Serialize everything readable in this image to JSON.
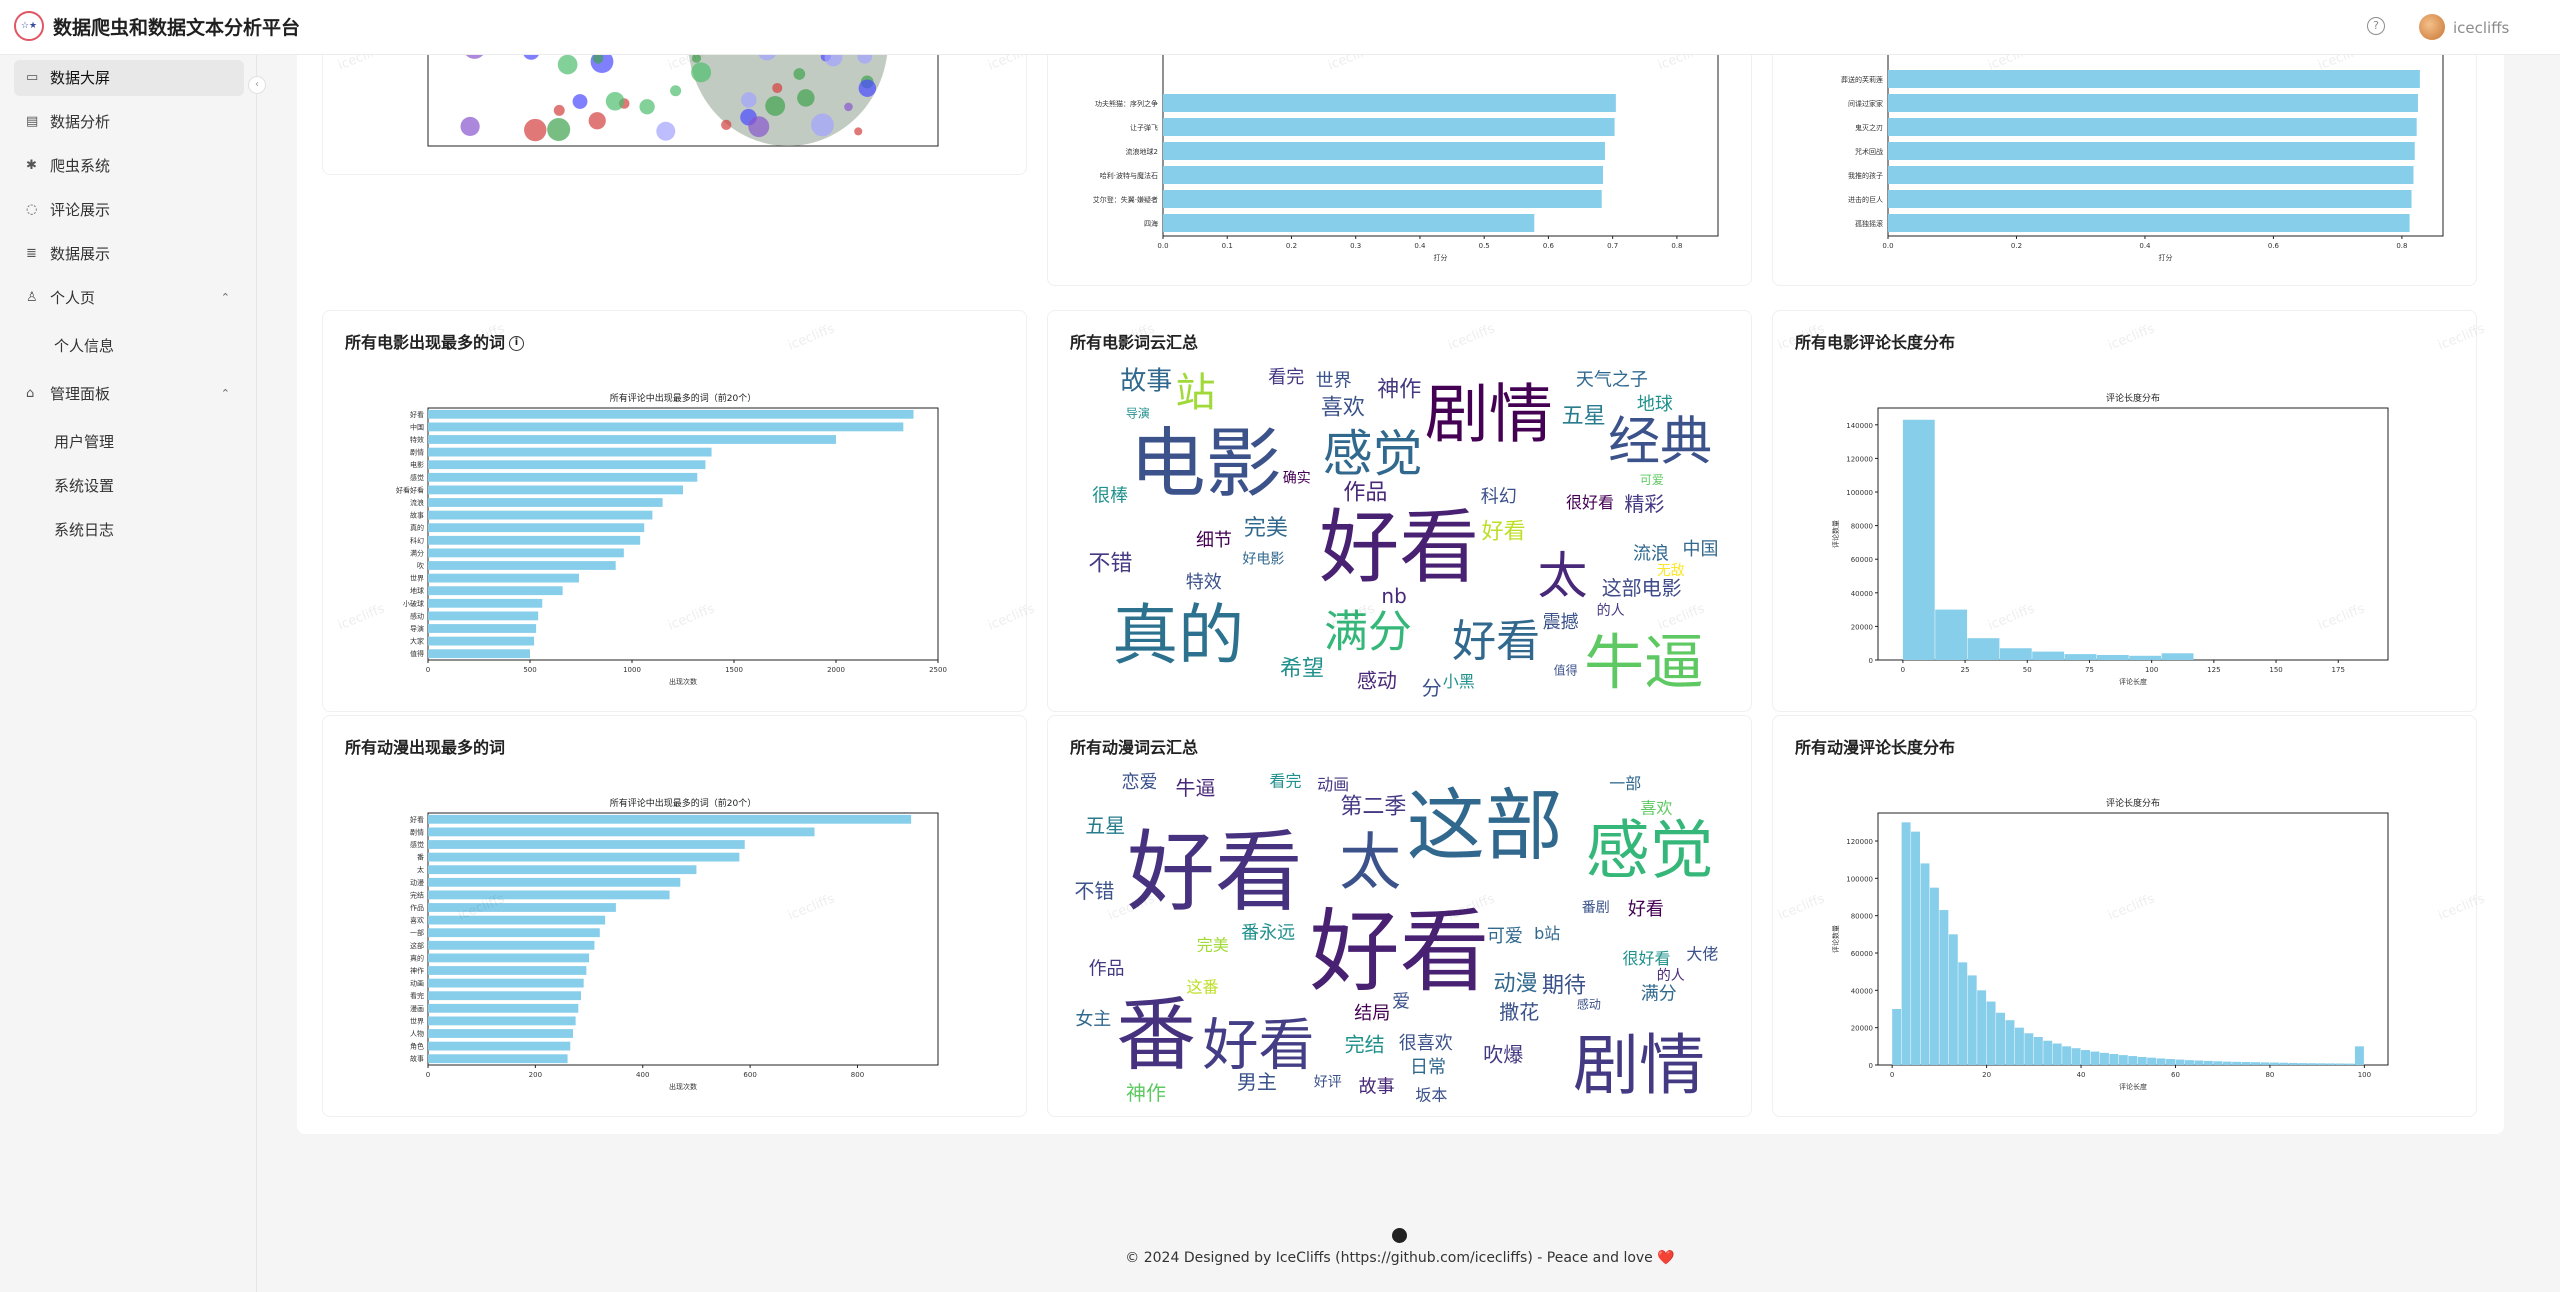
{
  "app": {
    "title": "数据爬虫和数据文本分析平台",
    "logo_text": "☆★",
    "username": "icecliffs",
    "help_icon": "question-circle-icon",
    "watermark": "icecliffs"
  },
  "sidebar": {
    "items": [
      {
        "label": "数据大屏",
        "icon": "dashboard-icon",
        "active": true
      },
      {
        "label": "数据分析",
        "icon": "chart-icon"
      },
      {
        "label": "爬虫系统",
        "icon": "bug-icon"
      },
      {
        "label": "评论展示",
        "icon": "comment-icon"
      },
      {
        "label": "数据展示",
        "icon": "table-icon"
      }
    ],
    "groups": [
      {
        "label": "个人页",
        "icon": "user-icon",
        "expanded": true,
        "children": [
          "个人信息"
        ]
      },
      {
        "label": "管理面板",
        "icon": "settings-icon",
        "expanded": true,
        "children": [
          "用户管理",
          "系统设置",
          "系统日志"
        ]
      }
    ]
  },
  "top_cards": {
    "middle_chart": {
      "xlabel": "打分",
      "xticks": [
        "0.0",
        "0.1",
        "0.2",
        "0.3",
        "0.4",
        "0.5",
        "0.6",
        "0.7",
        "0.8"
      ],
      "bars": [
        {
          "label": "功夫熊猫：序列之争",
          "value": 0.705
        },
        {
          "label": "让子弹飞",
          "value": 0.703
        },
        {
          "label": "流浪地球2",
          "value": 0.688
        },
        {
          "label": "哈利·波特与魔法石",
          "value": 0.685
        },
        {
          "label": "艾尔登：失翼·嫌疑者",
          "value": 0.683
        },
        {
          "label": "四海",
          "value": 0.578
        }
      ]
    },
    "right_chart": {
      "xlabel": "打分",
      "xticks": [
        "0.0",
        "0.2",
        "0.4",
        "0.6",
        "0.8"
      ],
      "bars": [
        {
          "label": "葬送的芙莉莲",
          "value": 0.828
        },
        {
          "label": "间谍过家家",
          "value": 0.825
        },
        {
          "label": "鬼灭之刃",
          "value": 0.823
        },
        {
          "label": "咒术回战",
          "value": 0.82
        },
        {
          "label": "我推的孩子",
          "value": 0.818
        },
        {
          "label": "进击的巨人",
          "value": 0.815
        },
        {
          "label": "孤独摇滚",
          "value": 0.812
        }
      ]
    }
  },
  "cards": {
    "movie_words": {
      "title": "所有电影出现最多的词",
      "info_icon": "info-circle-icon",
      "chart_data": {
        "type": "bar",
        "orientation": "horizontal",
        "title": "所有评论中出现最多的词（前20个）",
        "xlabel": "出现次数",
        "ylabel": "",
        "xlim": [
          0,
          2500
        ],
        "xticks": [
          0,
          500,
          1000,
          1500,
          2000,
          2500
        ],
        "categories": [
          "好看",
          "中国",
          "特效",
          "剧情",
          "电影",
          "感觉",
          "好看好看",
          "流浪",
          "故事",
          "真的",
          "科幻",
          "满分",
          "吹",
          "世界",
          "地球",
          "小破球",
          "感动",
          "导演",
          "大家",
          "值得"
        ],
        "values": [
          2380,
          2330,
          2000,
          1390,
          1360,
          1320,
          1250,
          1150,
          1100,
          1060,
          1040,
          960,
          920,
          740,
          660,
          560,
          540,
          530,
          520,
          500
        ]
      }
    },
    "movie_cloud": {
      "title": "所有电影词云汇总",
      "words": [
        {
          "t": "好看",
          "s": 80,
          "c": "#482173"
        },
        {
          "t": "电影",
          "s": 76,
          "c": "#3b528b"
        },
        {
          "t": "真的",
          "s": 66,
          "c": "#2c728e"
        },
        {
          "t": "剧情",
          "s": 64,
          "c": "#440154"
        },
        {
          "t": "经典",
          "s": 52,
          "c": "#3b528b"
        },
        {
          "t": "感觉",
          "s": 50,
          "c": "#31688e"
        },
        {
          "t": "牛逼",
          "s": 60,
          "c": "#5ec962"
        },
        {
          "t": "满分",
          "s": 44,
          "c": "#35b779"
        },
        {
          "t": "太",
          "s": 50,
          "c": "#482878"
        },
        {
          "t": "好看",
          "s": 44,
          "c": "#31688e"
        },
        {
          "t": "站",
          "s": 40,
          "c": "#a0da39"
        },
        {
          "t": "故事",
          "s": 26,
          "c": "#31688e"
        },
        {
          "t": "神作",
          "s": 22,
          "c": "#443983"
        },
        {
          "t": "完美",
          "s": 22,
          "c": "#31688e"
        },
        {
          "t": "五星",
          "s": 22,
          "c": "#287c8e"
        },
        {
          "t": "喜欢",
          "s": 22,
          "c": "#3b528b"
        },
        {
          "t": "希望",
          "s": 22,
          "c": "#21918c"
        },
        {
          "t": "不错",
          "s": 22,
          "c": "#443983"
        },
        {
          "t": "这部电影",
          "s": 20,
          "c": "#3e4a89"
        },
        {
          "t": "感动",
          "s": 20,
          "c": "#482878"
        },
        {
          "t": "中国",
          "s": 18,
          "c": "#31688e"
        },
        {
          "t": "科幻",
          "s": 18,
          "c": "#3b528b"
        },
        {
          "t": "震撼",
          "s": 18,
          "c": "#3b528b"
        },
        {
          "t": "细节",
          "s": 18,
          "c": "#440154"
        },
        {
          "t": "看完",
          "s": 18,
          "c": "#443983"
        },
        {
          "t": "很棒",
          "s": 18,
          "c": "#21918c"
        },
        {
          "t": "作品",
          "s": 22,
          "c": "#482878"
        },
        {
          "t": "特效",
          "s": 18,
          "c": "#3b528b"
        },
        {
          "t": "流浪",
          "s": 18,
          "c": "#31688e"
        },
        {
          "t": "地球",
          "s": 18,
          "c": "#21918c"
        },
        {
          "t": "精彩",
          "s": 20,
          "c": "#443983"
        },
        {
          "t": "世界",
          "s": 18,
          "c": "#3b528b"
        },
        {
          "t": "好看",
          "s": 22,
          "c": "#bddf26"
        },
        {
          "t": "无敌",
          "s": 14,
          "c": "#fde725"
        },
        {
          "t": "天气之子",
          "s": 18,
          "c": "#31688e"
        },
        {
          "t": "很好看",
          "s": 16,
          "c": "#440154"
        },
        {
          "t": "nb",
          "s": 20,
          "c": "#482878"
        },
        {
          "t": "分",
          "s": 20,
          "c": "#3b528b"
        },
        {
          "t": "好电影",
          "s": 14,
          "c": "#31688e"
        },
        {
          "t": "确实",
          "s": 14,
          "c": "#440154"
        },
        {
          "t": "小黑",
          "s": 16,
          "c": "#21918c"
        },
        {
          "t": "导演",
          "s": 12,
          "c": "#21918c"
        },
        {
          "t": "值得",
          "s": 12,
          "c": "#3b528b"
        },
        {
          "t": "的人",
          "s": 14,
          "c": "#443983"
        },
        {
          "t": "可爱",
          "s": 12,
          "c": "#5ec962"
        }
      ]
    },
    "movie_length": {
      "title": "所有电影评论长度分布",
      "chart_data": {
        "type": "bar",
        "title": "评论长度分布",
        "xlabel": "评论长度",
        "ylabel": "评论数量",
        "xlim": [
          -10,
          195
        ],
        "ylim": [
          0,
          150000
        ],
        "xticks": [
          0,
          25,
          50,
          75,
          100,
          125,
          150,
          175
        ],
        "yticks": [
          0,
          20000,
          40000,
          60000,
          80000,
          100000,
          120000,
          140000
        ],
        "bin_width": 13,
        "bins_start": [
          0,
          13,
          26,
          39,
          52,
          65,
          78,
          91,
          104
        ],
        "values": [
          143000,
          30000,
          13000,
          7000,
          5000,
          3500,
          3000,
          2500,
          4000
        ]
      }
    },
    "anime_words": {
      "title": "所有动漫出现最多的词",
      "chart_data": {
        "type": "bar",
        "orientation": "horizontal",
        "title": "所有评论中出现最多的词（前20个）",
        "xlabel": "出现次数",
        "ylabel": "",
        "xlim": [
          0,
          950
        ],
        "xticks": [
          0,
          200,
          400,
          600,
          800
        ],
        "categories": [
          "好看",
          "剧情",
          "感觉",
          "番",
          "太",
          "动漫",
          "完结",
          "作品",
          "喜欢",
          "一部",
          "这部",
          "真的",
          "神作",
          "动画",
          "看完",
          "漫画",
          "世界",
          "人物",
          "角色",
          "故事"
        ],
        "values": [
          900,
          720,
          590,
          580,
          500,
          470,
          450,
          350,
          330,
          320,
          310,
          300,
          295,
          290,
          285,
          280,
          275,
          270,
          265,
          260
        ]
      }
    },
    "anime_cloud": {
      "title": "所有动漫词云汇总",
      "words": [
        {
          "t": "好看",
          "s": 90,
          "c": "#482173"
        },
        {
          "t": "好看",
          "s": 88,
          "c": "#46327e"
        },
        {
          "t": "这部",
          "s": 78,
          "c": "#31688e"
        },
        {
          "t": "番",
          "s": 80,
          "c": "#46327e"
        },
        {
          "t": "剧情",
          "s": 66,
          "c": "#443983"
        },
        {
          "t": "感觉",
          "s": 64,
          "c": "#35b779"
        },
        {
          "t": "太",
          "s": 62,
          "c": "#3b528b"
        },
        {
          "t": "好看",
          "s": 56,
          "c": "#433e85"
        },
        {
          "t": "期待",
          "s": 22,
          "c": "#3b528b"
        },
        {
          "t": "第二季",
          "s": 22,
          "c": "#443983"
        },
        {
          "t": "恋爱",
          "s": 18,
          "c": "#3b528b"
        },
        {
          "t": "动漫",
          "s": 22,
          "c": "#31688e"
        },
        {
          "t": "完结",
          "s": 20,
          "c": "#21918c"
        },
        {
          "t": "撒花",
          "s": 20,
          "c": "#3b528b"
        },
        {
          "t": "男主",
          "s": 20,
          "c": "#3b528b"
        },
        {
          "t": "不错",
          "s": 20,
          "c": "#3b528b"
        },
        {
          "t": "神作",
          "s": 20,
          "c": "#5ec962"
        },
        {
          "t": "五星",
          "s": 20,
          "c": "#287c8e"
        },
        {
          "t": "很喜欢",
          "s": 18,
          "c": "#3b528b"
        },
        {
          "t": "番永远",
          "s": 18,
          "c": "#21918c"
        },
        {
          "t": "女主",
          "s": 18,
          "c": "#31688e"
        },
        {
          "t": "结局",
          "s": 18,
          "c": "#440154"
        },
        {
          "t": "作品",
          "s": 18,
          "c": "#443983"
        },
        {
          "t": "坂本",
          "s": 16,
          "c": "#3b528b"
        },
        {
          "t": "大佬",
          "s": 16,
          "c": "#3b528b"
        },
        {
          "t": "日常",
          "s": 18,
          "c": "#31688e"
        },
        {
          "t": "可爱",
          "s": 18,
          "c": "#31688e"
        },
        {
          "t": "满分",
          "s": 18,
          "c": "#31688e"
        },
        {
          "t": "故事",
          "s": 18,
          "c": "#482878"
        },
        {
          "t": "完美",
          "s": 16,
          "c": "#a0da39"
        },
        {
          "t": "看完",
          "s": 16,
          "c": "#21918c"
        },
        {
          "t": "吹爆",
          "s": 20,
          "c": "#443983"
        },
        {
          "t": "牛逼",
          "s": 20,
          "c": "#482878"
        },
        {
          "t": "这番",
          "s": 16,
          "c": "#bddf26"
        },
        {
          "t": "好看",
          "s": 18,
          "c": "#440154"
        },
        {
          "t": "爱",
          "s": 18,
          "c": "#3b528b"
        },
        {
          "t": "很好看",
          "s": 16,
          "c": "#21918c"
        },
        {
          "t": "好评",
          "s": 14,
          "c": "#3b528b"
        },
        {
          "t": "喜欢",
          "s": 16,
          "c": "#5ec962"
        },
        {
          "t": "动画",
          "s": 16,
          "c": "#443983"
        },
        {
          "t": "一部",
          "s": 16,
          "c": "#31688e"
        },
        {
          "t": "番剧",
          "s": 14,
          "c": "#3b528b"
        },
        {
          "t": "b站",
          "s": 16,
          "c": "#31688e"
        },
        {
          "t": "的人",
          "s": 14,
          "c": "#482878"
        },
        {
          "t": "感动",
          "s": 12,
          "c": "#3b528b"
        }
      ]
    },
    "anime_length": {
      "title": "所有动漫评论长度分布",
      "chart_data": {
        "type": "bar",
        "title": "评论长度分布",
        "xlabel": "评论长度",
        "ylabel": "评论数量",
        "xlim": [
          -3,
          105
        ],
        "ylim": [
          0,
          135000
        ],
        "xticks": [
          0,
          20,
          40,
          60,
          80,
          100
        ],
        "yticks": [
          0,
          20000,
          40000,
          60000,
          80000,
          100000,
          120000
        ],
        "bin_width": 2,
        "values": [
          30000,
          130000,
          125000,
          108000,
          95000,
          83000,
          70000,
          55000,
          48000,
          40000,
          34000,
          28000,
          24000,
          20000,
          17000,
          15000,
          13000,
          11500,
          10000,
          9000,
          8000,
          7200,
          6500,
          5900,
          5300,
          4800,
          4300,
          3900,
          3500,
          3200,
          2900,
          2600,
          2400,
          2200,
          2000,
          1800,
          1700,
          1600,
          1500,
          1400,
          1300,
          1200,
          1100,
          1000,
          950,
          900,
          850,
          800,
          750,
          10000
        ]
      }
    }
  },
  "footer": {
    "icon": "github-icon",
    "text": "© 2024 Designed by IceCliffs (https://github.com/icecliffs) - Peace and love",
    "heart": "❤️"
  }
}
